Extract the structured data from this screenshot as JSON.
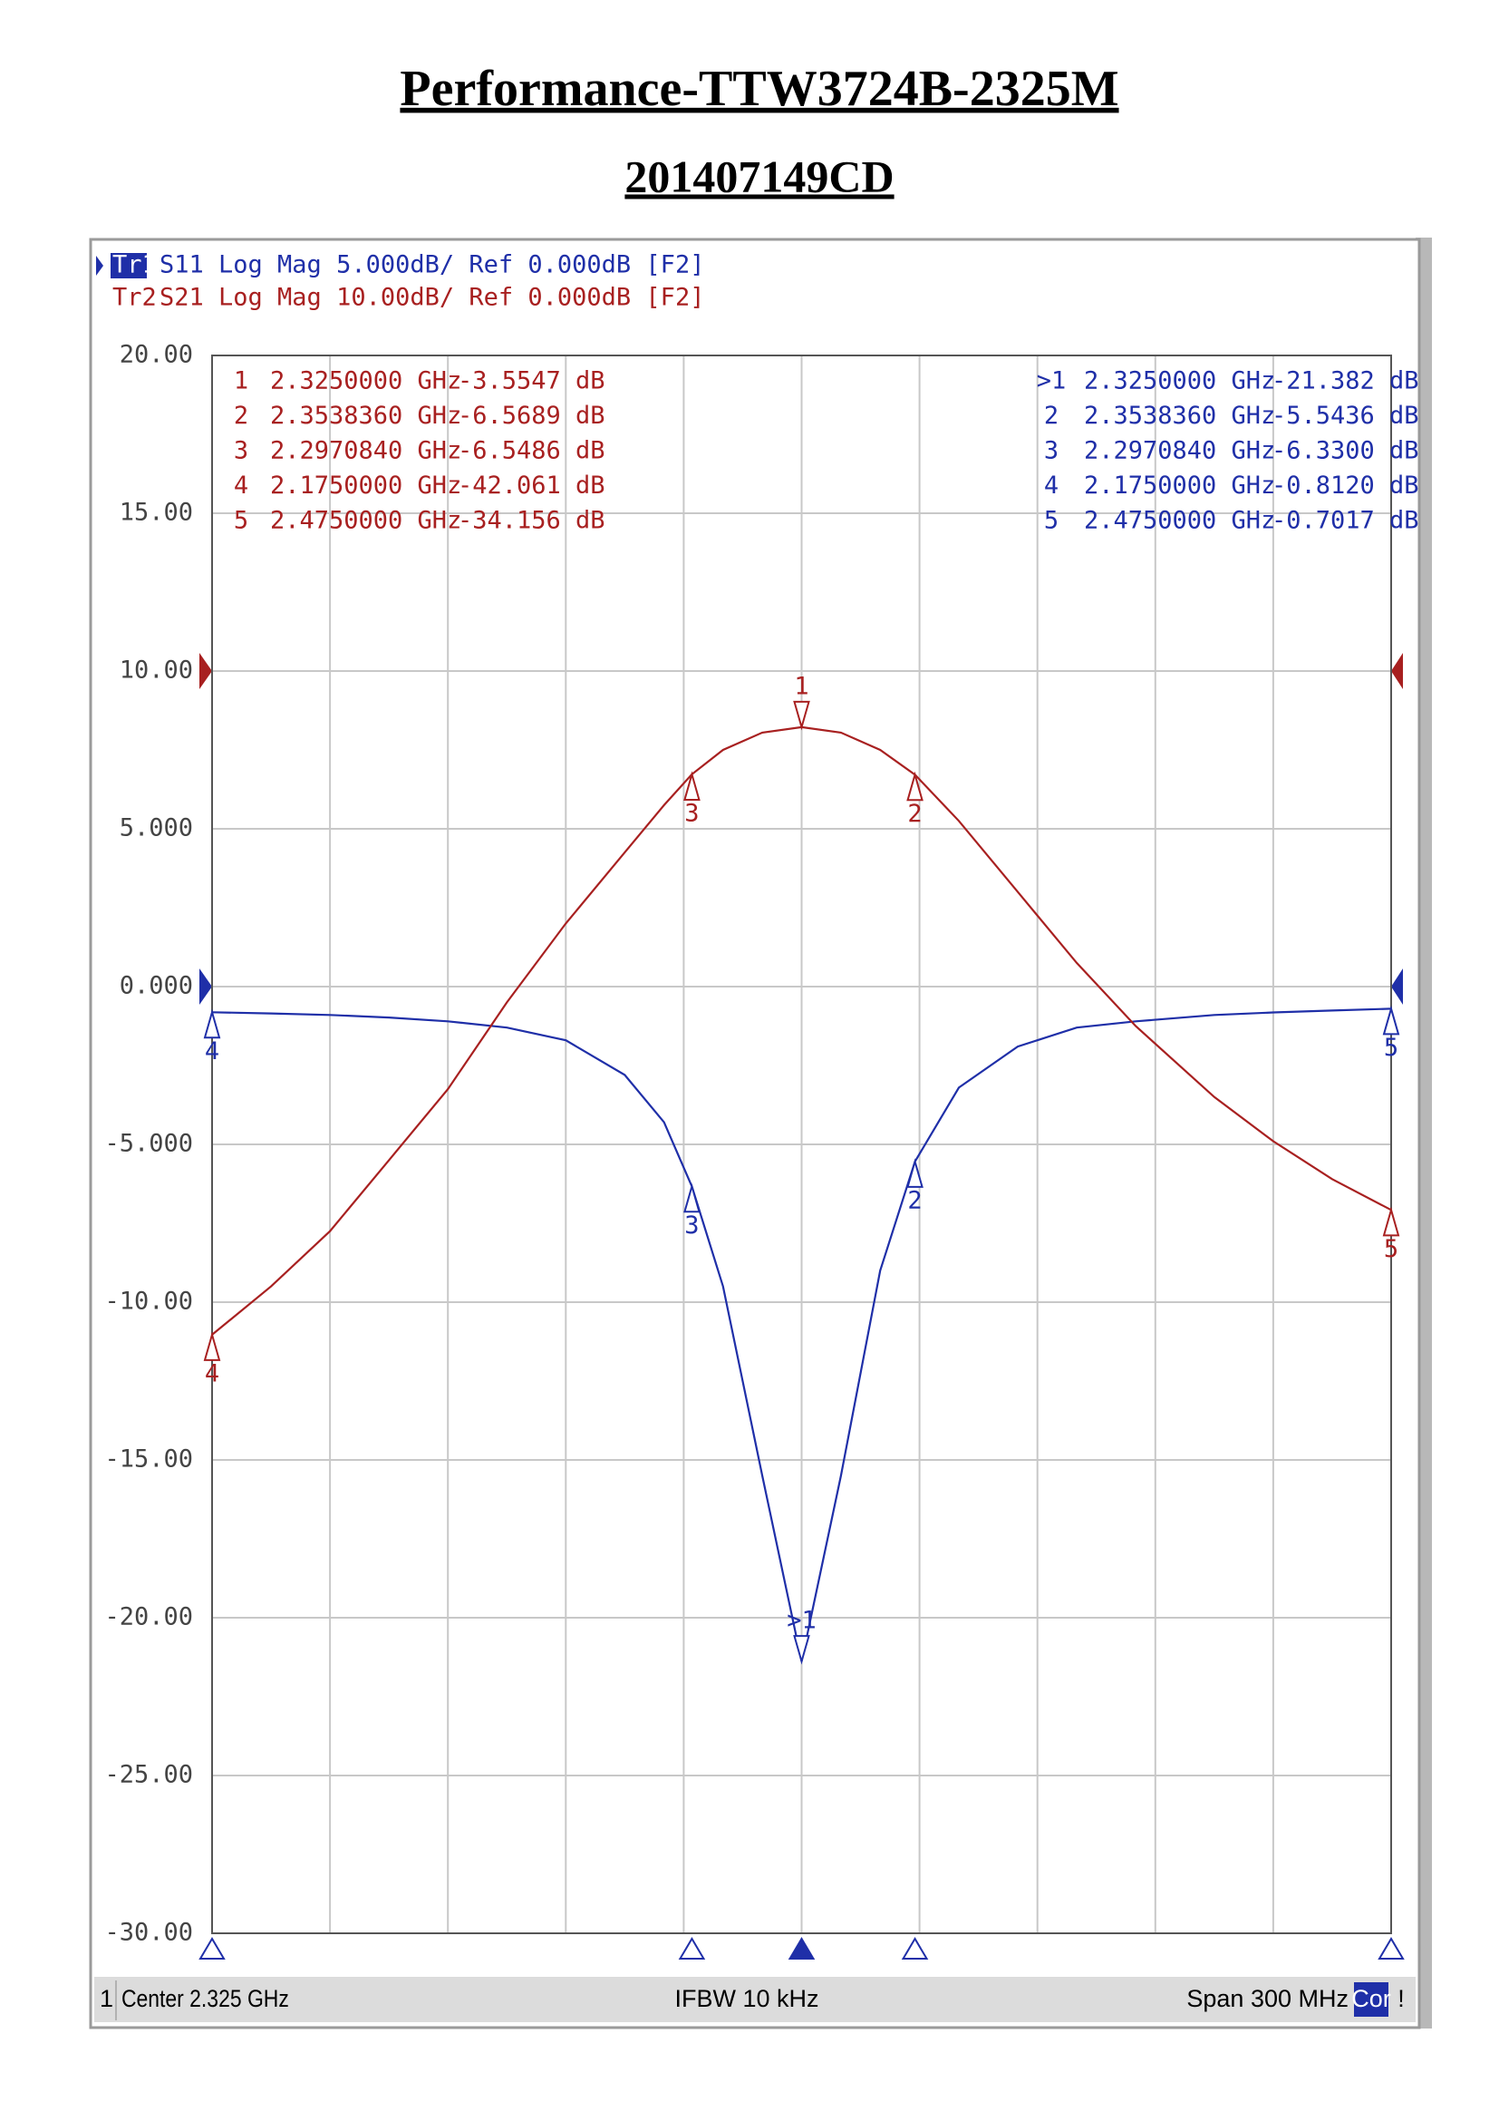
{
  "chart_data": {
    "type": "line",
    "title": "Performance-TTW3724B-2325M",
    "subtitle": "201407149CD",
    "trace_headers": [
      {
        "tag": "Tr1",
        "text": "S11 Log Mag 5.000dB/ Ref 0.000dB [F2]"
      },
      {
        "tag": "Tr2",
        "text": "S21 Log Mag 10.00dB/ Ref 0.000dB [F2]"
      }
    ],
    "status": {
      "channel": "1",
      "center": "Center 2.325 GHz",
      "ifbw": "IFBW 10 kHz",
      "span": "Span 300 MHz",
      "cor": "Cor",
      "flag": "!"
    },
    "xlim": [
      2.175,
      2.475
    ],
    "xticks": [
      2.175,
      2.205,
      2.235,
      2.265,
      2.295,
      2.325,
      2.355,
      2.385,
      2.415,
      2.445,
      2.475
    ],
    "ylim": [
      -30,
      20
    ],
    "yticks": [
      {
        "value": 20,
        "label": "20.00"
      },
      {
        "value": 15,
        "label": "15.00"
      },
      {
        "value": 10,
        "label": "10.00"
      },
      {
        "value": 5,
        "label": "5.000"
      },
      {
        "value": 0,
        "label": "0.000"
      },
      {
        "value": -5,
        "label": "-5.000"
      },
      {
        "value": -10,
        "label": "-10.00"
      },
      {
        "value": -15,
        "label": "-15.00"
      },
      {
        "value": -20,
        "label": "-20.00"
      },
      {
        "value": -25,
        "label": "-25.00"
      },
      {
        "value": -30,
        "label": "-30.00"
      }
    ],
    "y2lim": [
      -80,
      20
    ],
    "grid": true,
    "x": [
      2.175,
      2.19,
      2.205,
      2.22,
      2.235,
      2.25,
      2.265,
      2.28,
      2.29,
      2.297084,
      2.305,
      2.315,
      2.325,
      2.335,
      2.345,
      2.353836,
      2.365,
      2.38,
      2.395,
      2.41,
      2.43,
      2.445,
      2.46,
      2.475
    ],
    "series": [
      {
        "name": "S11",
        "color": "#1f2fa8",
        "values": [
          -0.812,
          -0.85,
          -0.9,
          -0.98,
          -1.1,
          -1.3,
          -1.7,
          -2.8,
          -4.3,
          -6.33,
          -9.5,
          -15.5,
          -21.382,
          -15.5,
          -9,
          -5.5436,
          -3.2,
          -1.9,
          -1.3,
          -1.1,
          -0.9,
          -0.82,
          -0.76,
          -0.7017
        ],
        "markers": [
          {
            "id": ">1",
            "freq": "2.3250000 GHz",
            "value": "-21.382 dB"
          },
          {
            "id": "2",
            "freq": "2.3538360 GHz",
            "value": "-5.5436 dB"
          },
          {
            "id": "3",
            "freq": "2.2970840 GHz",
            "value": "-6.3300 dB"
          },
          {
            "id": "4",
            "freq": "2.1750000 GHz",
            "value": "-0.8120 dB"
          },
          {
            "id": "5",
            "freq": "2.4750000 GHz",
            "value": "-0.7017 dB"
          }
        ]
      },
      {
        "name": "S21",
        "color": "#a82020",
        "axis": "y2",
        "values": [
          -42.061,
          -39,
          -35.5,
          -31,
          -26.5,
          -21,
          -16,
          -11.5,
          -8.5,
          -6.5486,
          -5,
          -3.9,
          -3.5547,
          -3.9,
          -5,
          -6.5689,
          -9.5,
          -14,
          -18.5,
          -22.5,
          -27,
          -29.8,
          -32.2,
          -34.156
        ],
        "markers": [
          {
            "id": "1",
            "freq": "2.3250000 GHz",
            "value": "-3.5547 dB"
          },
          {
            "id": "2",
            "freq": "2.3538360 GHz",
            "value": "-6.5689 dB"
          },
          {
            "id": "3",
            "freq": "2.2970840 GHz",
            "value": "-6.5486 dB"
          },
          {
            "id": "4",
            "freq": "2.1750000 GHz",
            "value": "-42.061 dB"
          },
          {
            "id": "5",
            "freq": "2.4750000 GHz",
            "value": "-34.156 dB"
          }
        ]
      }
    ]
  }
}
